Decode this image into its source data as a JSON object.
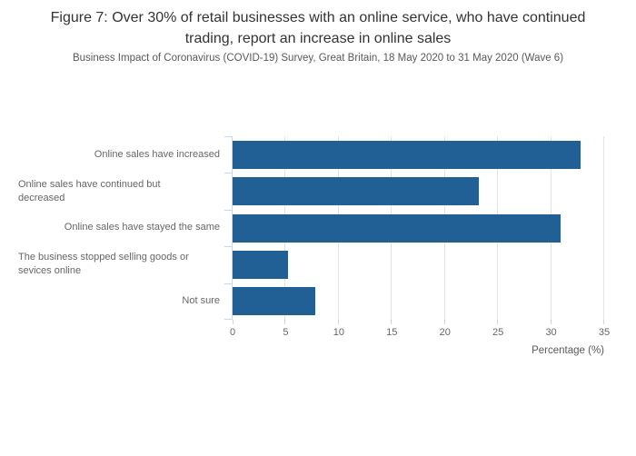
{
  "chart_data": {
    "type": "bar",
    "orientation": "horizontal",
    "title": "Figure 7: Over 30% of retail businesses with an online service, who have continued trading, report an increase in online sales",
    "subtitle": "Business Impact of Coronavirus (COVID-19) Survey, Great Britain, 18 May 2020 to 31 May 2020 (Wave 6)",
    "categories": [
      "Online sales have increased",
      "Online sales have continued but decreased",
      "Online sales have stayed the same",
      "The business stopped selling goods or sevices online",
      "Not sure"
    ],
    "values": [
      32.8,
      23.2,
      30.9,
      5.2,
      7.8
    ],
    "xlabel": "Percentage (%)",
    "ylabel": "",
    "xlim": [
      0,
      35
    ],
    "xticks": [
      0,
      5,
      10,
      15,
      20,
      25,
      30,
      35
    ],
    "grid": true,
    "legend": false,
    "colors": {
      "bar": "#206095",
      "axis": "#ccd6eb",
      "gridline": "#e1e5e8",
      "title_text": "#333333",
      "subtitle_text": "#595959",
      "label_text": "#666666",
      "background": "#ffffff"
    }
  }
}
